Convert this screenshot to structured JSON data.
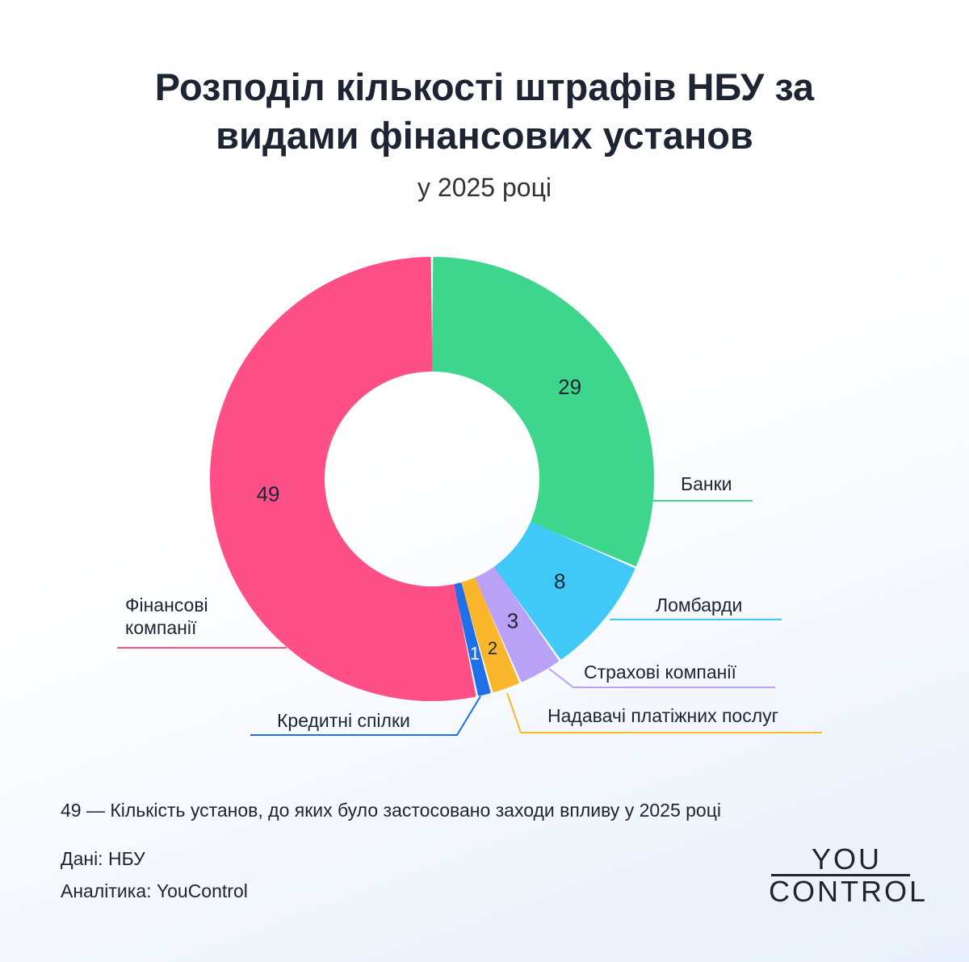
{
  "chart_data": {
    "type": "donut",
    "title": "Розподіл кількості штрафів НБУ за видами фінансових установ",
    "subtitle": "у 2025 році",
    "categories": [
      "Банки",
      "Ломбарди",
      "Страхові компанії",
      "Надавачі платіжних послуг",
      "Кредитні спілки",
      "Фінансові компанії"
    ],
    "values": [
      29,
      8,
      3,
      2,
      1,
      49
    ],
    "colors": [
      "#3dd68c",
      "#40c8f7",
      "#b9a2f6",
      "#fbb62c",
      "#1f6fe8",
      "#ff4f87"
    ],
    "note": "49 — Кількість установ, до яких було застосовано заходи впливу у 2025 році",
    "source": "Дані: НБУ",
    "analytics": "Аналітика: YouControl",
    "logo": [
      "YOU",
      "CONTROL"
    ]
  }
}
